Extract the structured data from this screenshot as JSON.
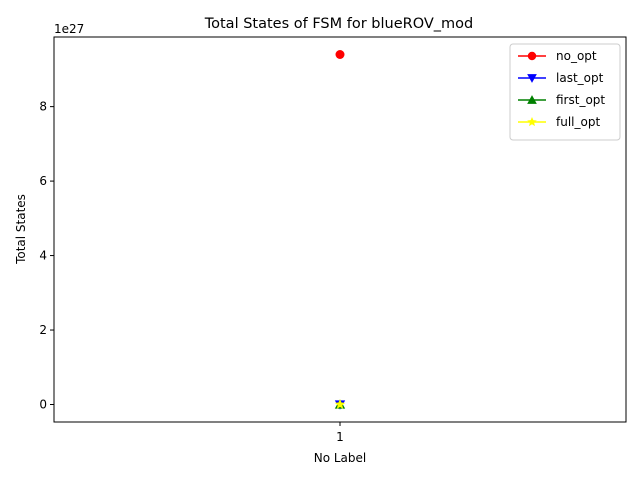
{
  "chart_data": {
    "type": "line",
    "title": "Total States of FSM for blueROV_mod",
    "xlabel": "No Label",
    "ylabel": "Total States",
    "y_offset_text": "1e27",
    "y_scale_factor": 1e+27,
    "categories": [
      "1"
    ],
    "xlim": [
      0.5,
      1.5
    ],
    "ylim": [
      -0.47,
      9.87
    ],
    "y_ticks": [
      0,
      2,
      4,
      6,
      8
    ],
    "grid": false,
    "legend_position": "top-right",
    "series": [
      {
        "name": "no_opt",
        "color": "#ff0000",
        "marker": "circle",
        "values": [
          9.4
        ]
      },
      {
        "name": "last_opt",
        "color": "#0000ff",
        "marker": "triangle-down",
        "values": [
          0.0
        ]
      },
      {
        "name": "first_opt",
        "color": "#008000",
        "marker": "triangle-up",
        "values": [
          0.0
        ]
      },
      {
        "name": "full_opt",
        "color": "#ffff00",
        "marker": "star",
        "values": [
          0.0
        ]
      }
    ]
  }
}
